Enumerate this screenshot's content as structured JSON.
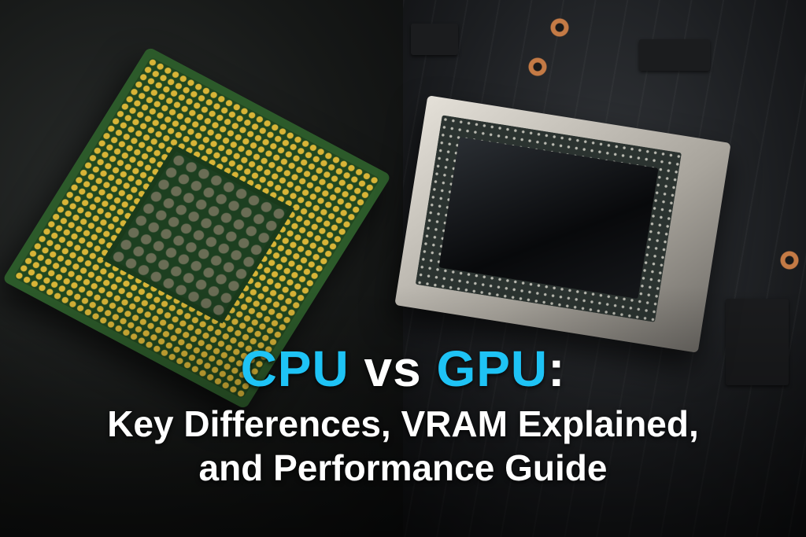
{
  "title": {
    "line1": {
      "part1": "CPU",
      "part2": "vs",
      "part3": "GPU",
      "part4": ":"
    },
    "line2": "Key Differences, VRAM Explained,",
    "line3": "and Performance Guide"
  },
  "colors": {
    "accent": "#1ec3f5",
    "text": "#ffffff"
  },
  "images": {
    "left": "cpu-chip-photo",
    "right": "gpu-die-photo"
  }
}
